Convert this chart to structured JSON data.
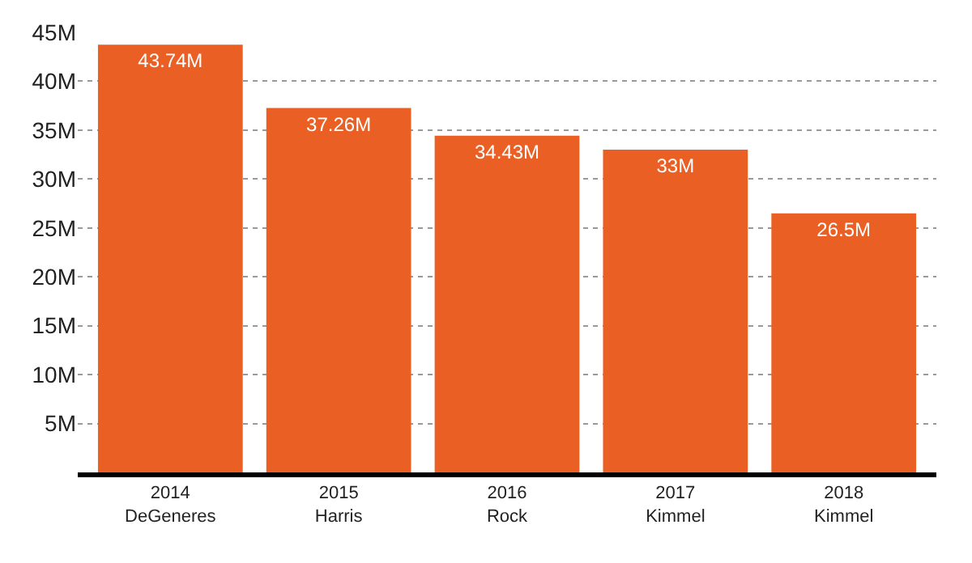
{
  "chart_data": {
    "type": "bar",
    "categories": [
      "2014\nDeGeneres",
      "2015\nHarris",
      "2016\nRock",
      "2017\nKimmel",
      "2018\nKimmel"
    ],
    "values": [
      43.74,
      37.26,
      34.43,
      33,
      26.5
    ],
    "value_labels": [
      "43.74M",
      "37.26M",
      "34.43M",
      "33M",
      "26.5M"
    ],
    "color": "#ea5f24",
    "ylim": [
      0,
      45
    ],
    "yticks": [
      {
        "value": 0,
        "label": null
      },
      {
        "value": 5,
        "label": "5M"
      },
      {
        "value": 10,
        "label": "10M"
      },
      {
        "value": 15,
        "label": "15M"
      },
      {
        "value": 20,
        "label": "20M"
      },
      {
        "value": 25,
        "label": "25M"
      },
      {
        "value": 30,
        "label": "30M"
      },
      {
        "value": 35,
        "label": "35M"
      },
      {
        "value": 40,
        "label": "40M"
      },
      {
        "value": 45,
        "label": "45M"
      }
    ],
    "grid": "y",
    "legend": false
  }
}
